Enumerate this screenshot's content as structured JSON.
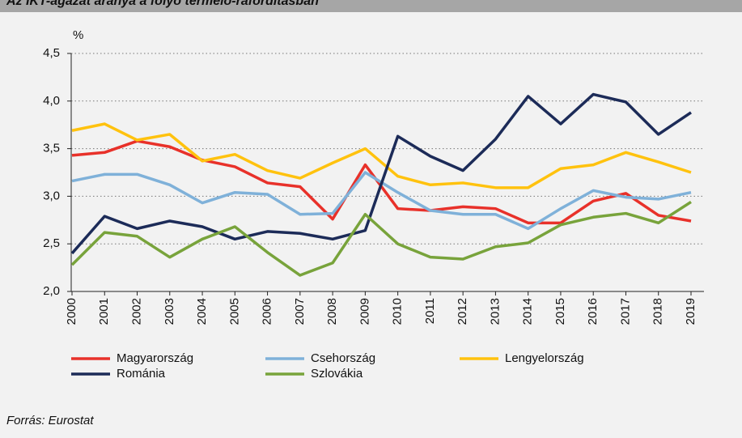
{
  "chart_data": {
    "type": "line",
    "title": "Az IKT-ágazat aránya a folyó termelő-ráfordításban",
    "y_label": "%",
    "source": "Forrás: Eurostat",
    "categories": [
      "2000",
      "2001",
      "2002",
      "2003",
      "2004",
      "2005",
      "2006",
      "2007",
      "2008",
      "2009",
      "2010",
      "2011",
      "2012",
      "2013",
      "2014",
      "2015",
      "2016",
      "2017",
      "2018",
      "2019"
    ],
    "series": [
      {
        "name": "Magyarország",
        "color": "#e8312a",
        "values": [
          3.43,
          3.46,
          3.58,
          3.52,
          3.38,
          3.31,
          3.14,
          3.1,
          2.76,
          3.33,
          2.87,
          2.85,
          2.89,
          2.87,
          2.72,
          2.72,
          2.95,
          3.03,
          2.8,
          2.74
        ]
      },
      {
        "name": "Csehország",
        "color": "#7fb1d9",
        "values": [
          3.16,
          3.23,
          3.23,
          3.12,
          2.93,
          3.04,
          3.02,
          2.81,
          2.82,
          3.25,
          3.04,
          2.85,
          2.81,
          2.81,
          2.66,
          2.87,
          3.06,
          2.99,
          2.97,
          3.04
        ]
      },
      {
        "name": "Lengyelország",
        "color": "#ffc20e",
        "values": [
          3.69,
          3.76,
          3.59,
          3.65,
          3.37,
          3.44,
          3.27,
          3.19,
          3.35,
          3.5,
          3.21,
          3.12,
          3.14,
          3.09,
          3.09,
          3.29,
          3.33,
          3.46,
          3.36,
          3.25
        ]
      },
      {
        "name": "Románia",
        "color": "#1c2b58",
        "values": [
          2.4,
          2.79,
          2.66,
          2.74,
          2.68,
          2.55,
          2.63,
          2.61,
          2.55,
          2.64,
          3.63,
          3.42,
          3.27,
          3.6,
          4.05,
          3.76,
          4.07,
          3.99,
          3.65,
          3.88
        ]
      },
      {
        "name": "Szlovákia",
        "color": "#78a33b",
        "values": [
          2.28,
          2.62,
          2.58,
          2.36,
          2.55,
          2.68,
          2.41,
          2.17,
          2.3,
          2.81,
          2.5,
          2.36,
          2.34,
          2.47,
          2.51,
          2.7,
          2.78,
          2.82,
          2.72,
          2.94
        ]
      }
    ],
    "ylim": [
      2.0,
      4.5
    ],
    "yticks": [
      {
        "value": 2.0,
        "label": "2,0"
      },
      {
        "value": 2.5,
        "label": "2,5"
      },
      {
        "value": 3.0,
        "label": "3,0"
      },
      {
        "value": 3.5,
        "label": "3,5"
      },
      {
        "value": 4.0,
        "label": "4,0"
      },
      {
        "value": 4.5,
        "label": "4,5"
      }
    ],
    "grid": true
  }
}
